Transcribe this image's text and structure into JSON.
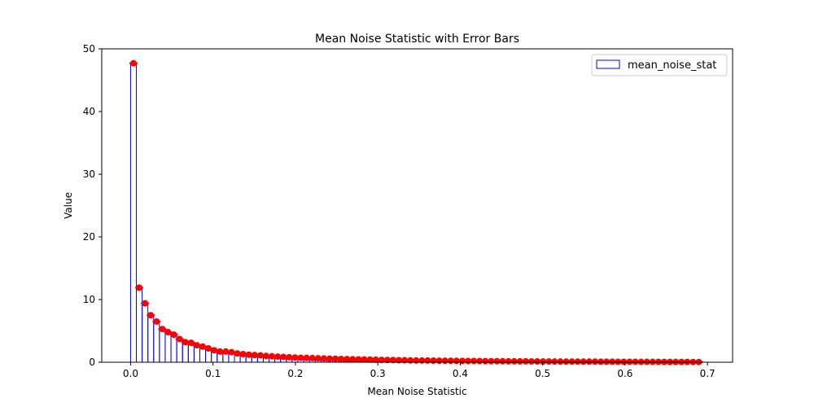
{
  "chart_data": {
    "type": "bar",
    "title": "Mean Noise Statistic with Error Bars",
    "xlabel": "Mean Noise Statistic",
    "ylabel": "Value",
    "xlim": [
      -0.035,
      0.7305
    ],
    "ylim": [
      0,
      50
    ],
    "xticks": [
      0.0,
      0.1,
      0.2,
      0.3,
      0.4,
      0.5,
      0.6,
      0.7
    ],
    "xtick_labels": [
      "0.0",
      "0.1",
      "0.2",
      "0.3",
      "0.4",
      "0.5",
      "0.6",
      "0.7"
    ],
    "yticks": [
      0,
      10,
      20,
      30,
      40,
      50
    ],
    "ytick_labels": [
      "0",
      "10",
      "20",
      "30",
      "40",
      "50"
    ],
    "grid": false,
    "legend": {
      "position": "top-right",
      "entries": [
        "mean_noise_stat"
      ]
    },
    "bar_width": 0.007,
    "bar_edge_color": "#0000ff",
    "bar_fill": "none",
    "errorbar_color": "#ff0000",
    "x": [
      0.0035,
      0.0105,
      0.0175,
      0.0245,
      0.0315,
      0.0385,
      0.0455,
      0.0525,
      0.0595,
      0.0665,
      0.0735,
      0.0805,
      0.0875,
      0.0945,
      0.1015,
      0.1085,
      0.1155,
      0.1225,
      0.1295,
      0.1365,
      0.1435,
      0.1505,
      0.1575,
      0.1645,
      0.1715,
      0.1785,
      0.1855,
      0.1925,
      0.1995,
      0.2065,
      0.2135,
      0.2205,
      0.2275,
      0.2345,
      0.2415,
      0.2485,
      0.2555,
      0.2625,
      0.2695,
      0.2765,
      0.2835,
      0.2905,
      0.2975,
      0.3045,
      0.3115,
      0.3185,
      0.3255,
      0.3325,
      0.3395,
      0.3465,
      0.3535,
      0.3605,
      0.3675,
      0.3745,
      0.3815,
      0.3885,
      0.3955,
      0.4025,
      0.4095,
      0.4165,
      0.4235,
      0.4305,
      0.4375,
      0.4445,
      0.4515,
      0.4585,
      0.4655,
      0.4725,
      0.4795,
      0.4865,
      0.4935,
      0.5005,
      0.5075,
      0.5145,
      0.5215,
      0.5285,
      0.5355,
      0.5425,
      0.5495,
      0.5565,
      0.5635,
      0.5705,
      0.5775,
      0.5845,
      0.5915,
      0.5985,
      0.6055,
      0.6125,
      0.6195,
      0.6265,
      0.6335,
      0.6405,
      0.6475,
      0.6545,
      0.6615,
      0.6685,
      0.6755,
      0.6825,
      0.6895
    ],
    "values": [
      47.7,
      11.9,
      9.4,
      7.5,
      6.5,
      5.3,
      4.8,
      4.4,
      3.7,
      3.2,
      3.1,
      2.7,
      2.5,
      2.2,
      1.9,
      1.7,
      1.7,
      1.6,
      1.4,
      1.3,
      1.2,
      1.15,
      1.1,
      1.0,
      0.95,
      0.9,
      0.85,
      0.8,
      0.75,
      0.72,
      0.69,
      0.66,
      0.63,
      0.6,
      0.57,
      0.55,
      0.52,
      0.5,
      0.48,
      0.46,
      0.44,
      0.42,
      0.4,
      0.38,
      0.36,
      0.35,
      0.33,
      0.32,
      0.3,
      0.29,
      0.28,
      0.27,
      0.26,
      0.25,
      0.24,
      0.23,
      0.22,
      0.21,
      0.2,
      0.2,
      0.19,
      0.18,
      0.17,
      0.17,
      0.16,
      0.15,
      0.15,
      0.14,
      0.14,
      0.13,
      0.13,
      0.12,
      0.12,
      0.11,
      0.11,
      0.1,
      0.1,
      0.1,
      0.09,
      0.09,
      0.09,
      0.08,
      0.08,
      0.08,
      0.07,
      0.07,
      0.07,
      0.07,
      0.06,
      0.06,
      0.06,
      0.06,
      0.05,
      0.05,
      0.05,
      0.05,
      0.05,
      0.04,
      0.04
    ],
    "errors": [
      0.45,
      0.35,
      0.35,
      0.3,
      0.3,
      0.3,
      0.3,
      0.3,
      0.25,
      0.25,
      0.25,
      0.25,
      0.25,
      0.2,
      0.2,
      0.2,
      0.2,
      0.2,
      0.2,
      0.2,
      0.2,
      0.15,
      0.15,
      0.15,
      0.15,
      0.15,
      0.15,
      0.15,
      0.15,
      0.15,
      0.15,
      0.15,
      0.15,
      0.15,
      0.15,
      0.15,
      0.15,
      0.15,
      0.15,
      0.15,
      0.15,
      0.15,
      0.15,
      0.15,
      0.15,
      0.15,
      0.15,
      0.15,
      0.15,
      0.15,
      0.15,
      0.15,
      0.15,
      0.15,
      0.15,
      0.15,
      0.15,
      0.15,
      0.15,
      0.15,
      0.15,
      0.15,
      0.15,
      0.15,
      0.15,
      0.15,
      0.15,
      0.15,
      0.15,
      0.15,
      0.15,
      0.15,
      0.15,
      0.15,
      0.15,
      0.15,
      0.15,
      0.15,
      0.15,
      0.15,
      0.15,
      0.15,
      0.15,
      0.15,
      0.15,
      0.15,
      0.15,
      0.15,
      0.15,
      0.15,
      0.15,
      0.15,
      0.15,
      0.15,
      0.15,
      0.15,
      0.15,
      0.15,
      0.15
    ]
  }
}
